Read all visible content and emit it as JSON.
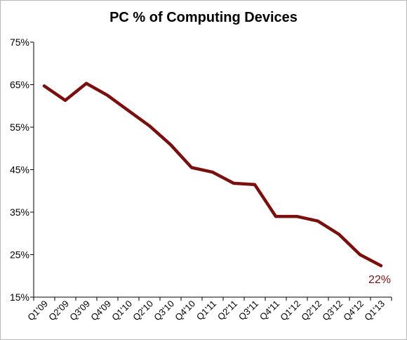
{
  "chart_data": {
    "type": "line",
    "title": "PC % of Computing Devices",
    "xlabel": "",
    "ylabel": "",
    "categories": [
      "Q1'09",
      "Q2'09",
      "Q3'09",
      "Q4'09",
      "Q1'10",
      "Q2'10",
      "Q3'10",
      "Q4'10",
      "Q1'11",
      "Q2'11",
      "Q3'11",
      "Q4'11",
      "Q1'12",
      "Q2'12",
      "Q3'12",
      "Q4'12",
      "Q1'13"
    ],
    "series": [
      {
        "values": [
          64.7,
          61.3,
          65.3,
          62.5,
          58.9,
          55.3,
          50.9,
          45.5,
          44.4,
          41.8,
          41.5,
          34.0,
          34.0,
          32.9,
          29.8,
          25.0,
          22.4
        ],
        "color": "#7a0f0f"
      }
    ],
    "ylim": [
      15,
      75
    ],
    "y_ticks": [
      15,
      25,
      35,
      45,
      55,
      65,
      75
    ],
    "y_tick_labels": [
      "15%",
      "25%",
      "35%",
      "45%",
      "55%",
      "65%",
      "75%"
    ],
    "data_label": "22%",
    "data_label_color": "#7a0f0f",
    "grid": false,
    "legend": "none"
  }
}
